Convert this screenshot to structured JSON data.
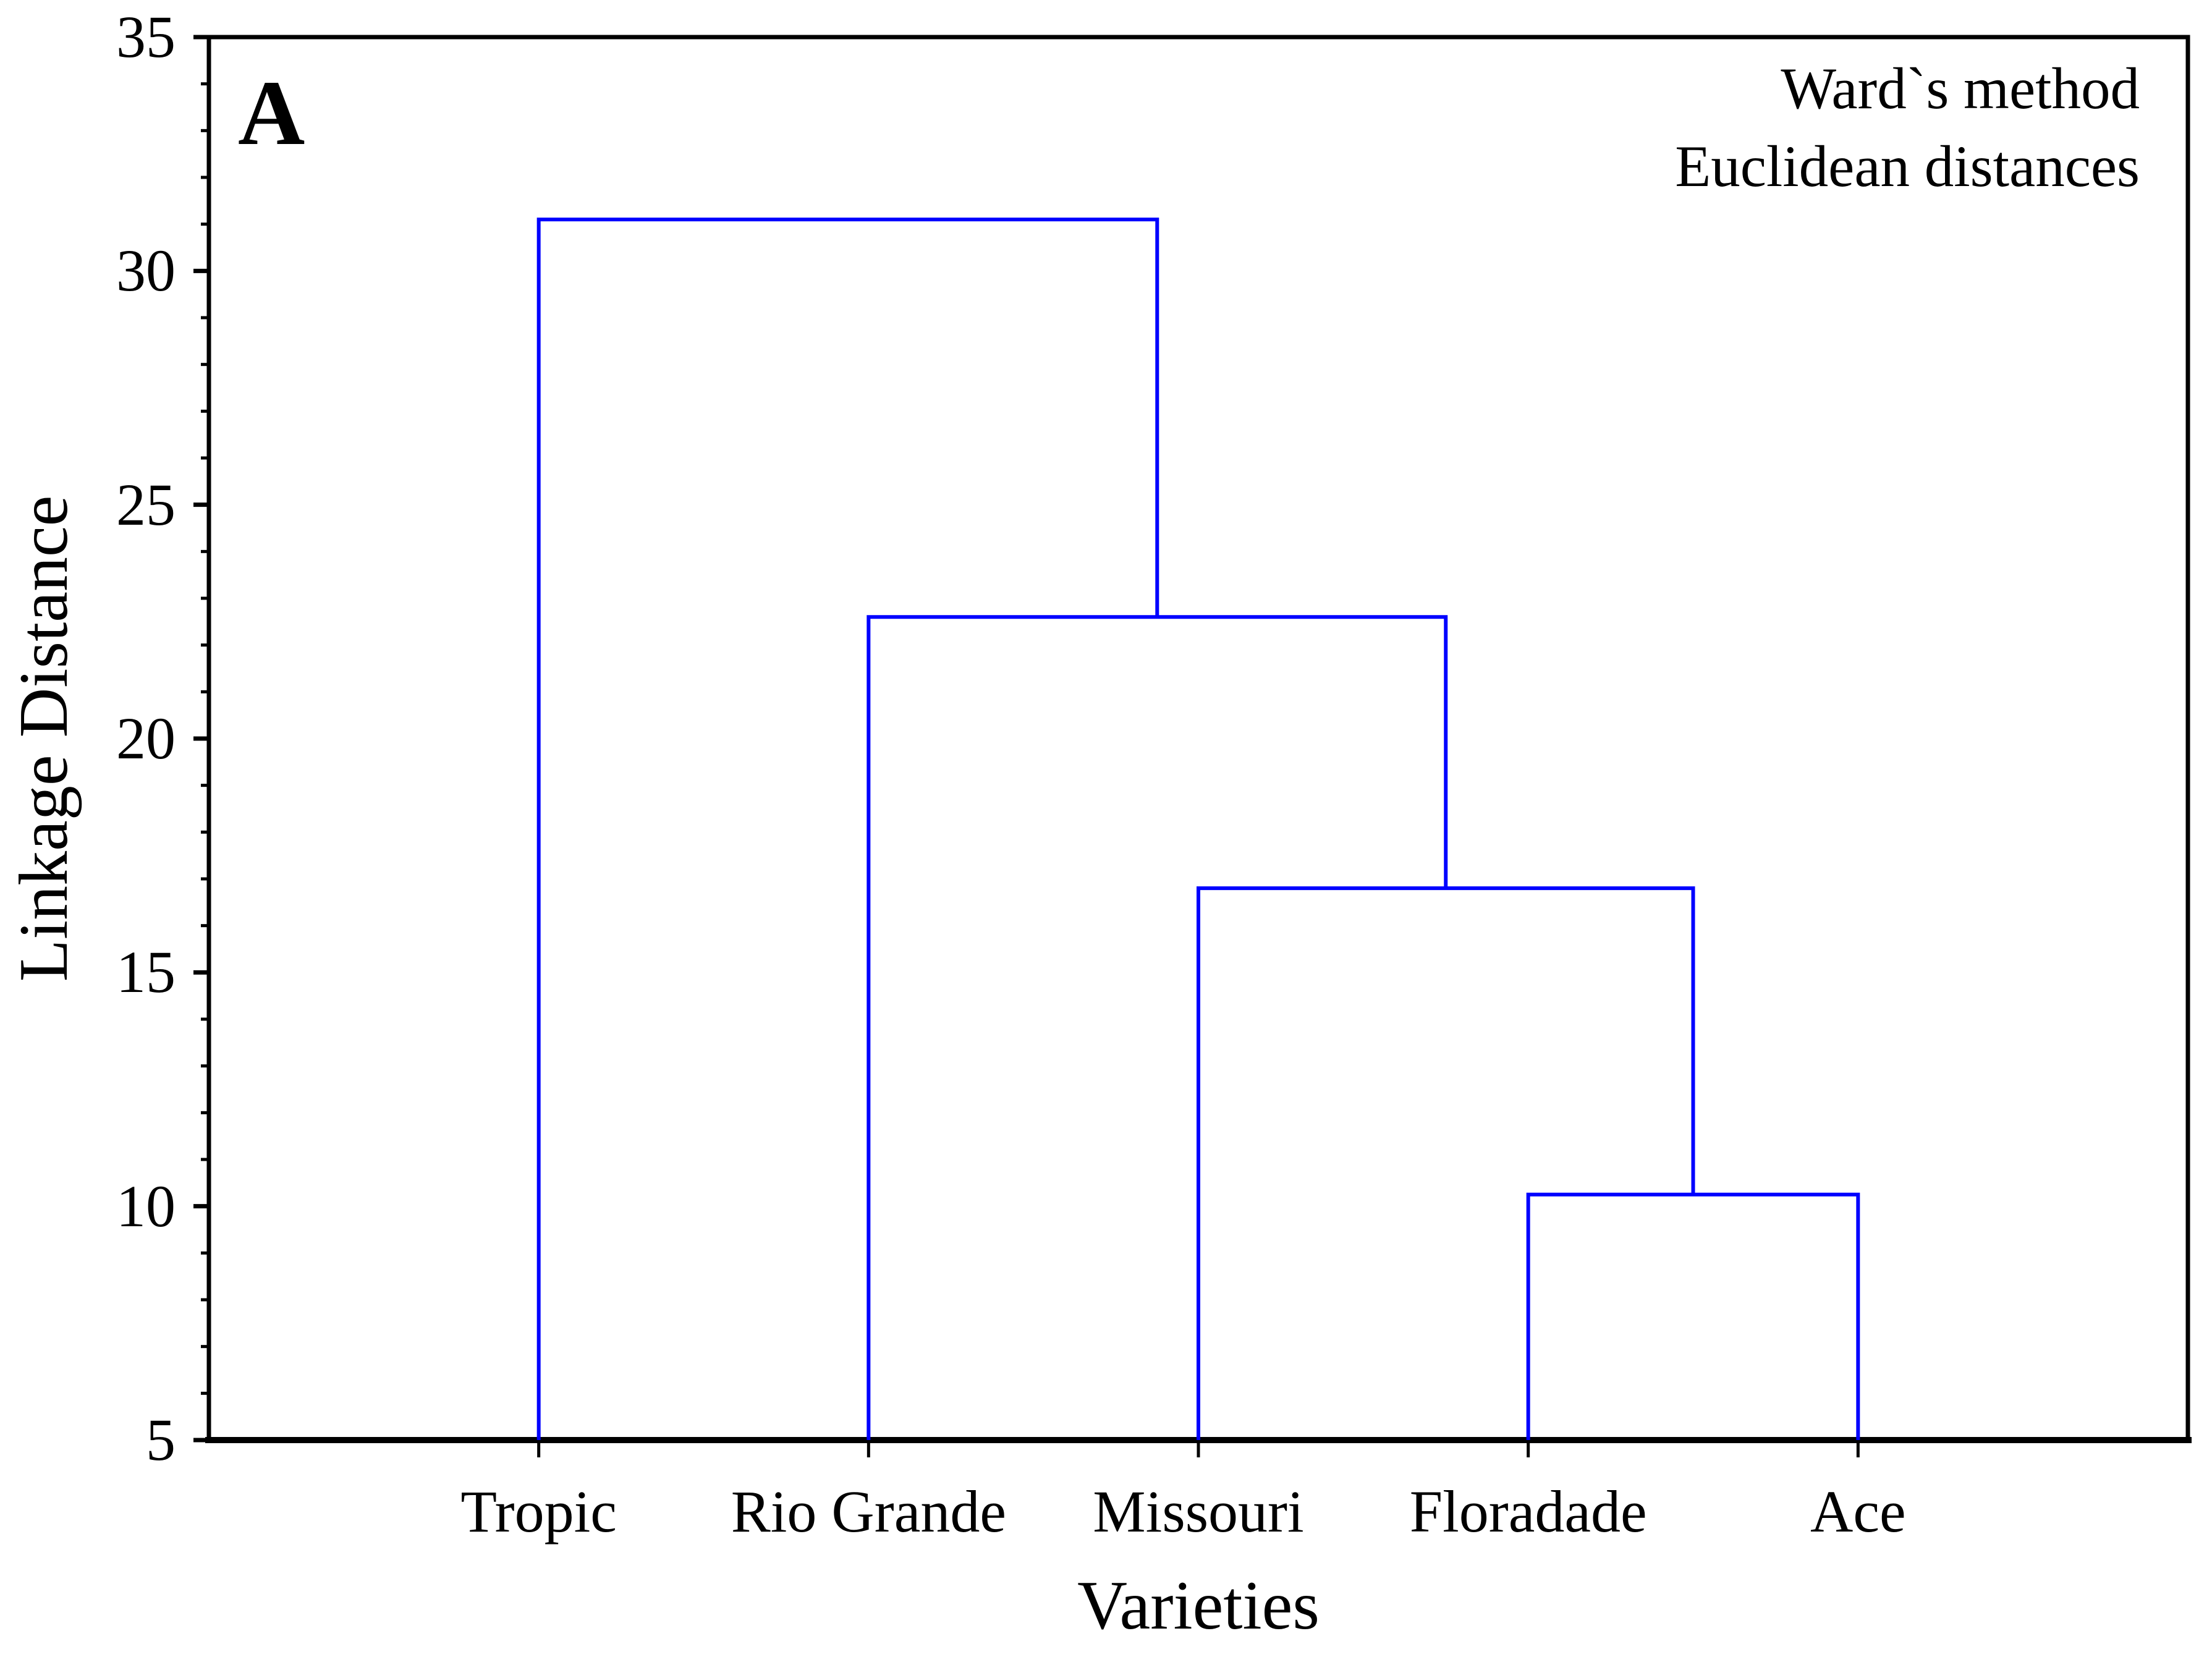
{
  "figure": {
    "panel_label": "A"
  },
  "chart_data": {
    "type": "dendrogram",
    "title": "",
    "xlabel": "Varieties",
    "ylabel": "Linkage Distance",
    "annotations": [
      "Ward`s method",
      "Euclidean distances"
    ],
    "categories": [
      "Tropic",
      "Rio Grande",
      "Missouri",
      "Floradade",
      "Ace"
    ],
    "merges": [
      {
        "a": "Floradade",
        "b": "Ace",
        "join": "merge0_unused",
        "height": 10.25
      },
      {
        "a": "Missouri",
        "b": "merge0",
        "height": 16.8
      },
      {
        "a": "Rio Grande",
        "b": "merge1",
        "height": 22.6
      },
      {
        "a": "Tropic",
        "b": "merge2",
        "height": 31.1
      }
    ],
    "leaf_base_value": 5,
    "ylim": [
      5,
      35
    ],
    "ytick_major": [
      35,
      30,
      25,
      20,
      15,
      10,
      5
    ],
    "ytick_minor_step": 1,
    "grid": false,
    "legend": null,
    "line_color": "#0000FF",
    "axis_color": "#000000",
    "background_color": "#FFFFFF"
  }
}
